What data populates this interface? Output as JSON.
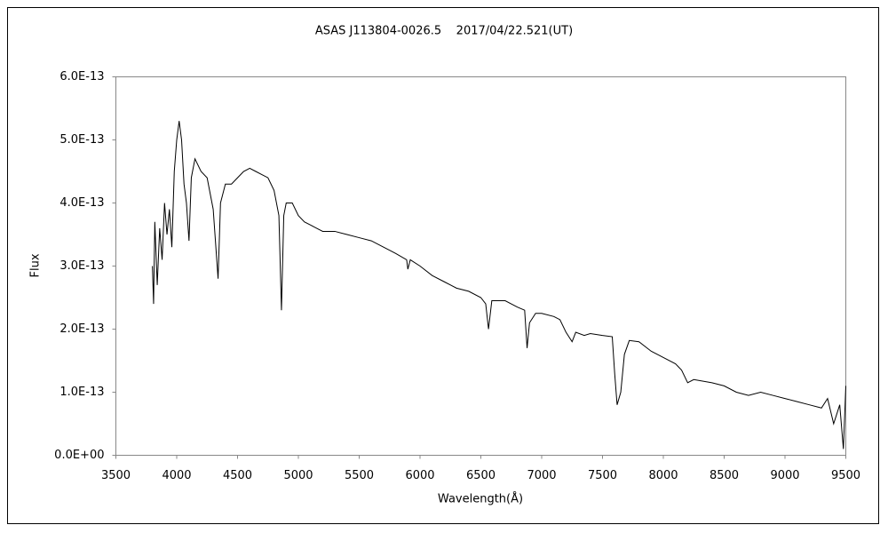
{
  "chart_data": {
    "type": "line",
    "title": "ASAS J113804-0026.5    2017/04/22.521(UT)",
    "xlabel": "Wavelength(Å)",
    "ylabel": "Flux",
    "xlim": [
      3500,
      9500
    ],
    "xticks": [
      3500,
      4000,
      4500,
      5000,
      5500,
      6000,
      6500,
      7000,
      7500,
      8000,
      8500,
      9000,
      9500
    ],
    "ylim": [
      0,
      6e-13
    ],
    "yticks": [
      {
        "value": 0,
        "label": "0.0E+00"
      },
      {
        "value": 1e-13,
        "label": "1.0E-13"
      },
      {
        "value": 2e-13,
        "label": "2.0E-13"
      },
      {
        "value": 3e-13,
        "label": "3.0E-13"
      },
      {
        "value": 4e-13,
        "label": "4.0E-13"
      },
      {
        "value": 5e-13,
        "label": "5.0E-13"
      },
      {
        "value": 6e-13,
        "label": "6.0E-13"
      }
    ],
    "grid": false,
    "series": [
      {
        "color": "#000000",
        "x": [
          3800,
          3810,
          3820,
          3840,
          3860,
          3880,
          3900,
          3920,
          3940,
          3960,
          3980,
          4000,
          4020,
          4040,
          4060,
          4080,
          4101,
          4120,
          4150,
          4200,
          4250,
          4300,
          4340,
          4360,
          4400,
          4450,
          4500,
          4550,
          4600,
          4650,
          4700,
          4750,
          4800,
          4840,
          4861,
          4880,
          4900,
          4950,
          5000,
          5050,
          5100,
          5150,
          5200,
          5300,
          5400,
          5500,
          5600,
          5700,
          5800,
          5890,
          5900,
          5920,
          6000,
          6100,
          6200,
          6300,
          6400,
          6500,
          6540,
          6563,
          6590,
          6700,
          6800,
          6860,
          6880,
          6900,
          6950,
          7000,
          7100,
          7150,
          7200,
          7250,
          7280,
          7350,
          7400,
          7500,
          7580,
          7600,
          7620,
          7650,
          7680,
          7720,
          7800,
          7900,
          8000,
          8100,
          8150,
          8200,
          8250,
          8400,
          8500,
          8600,
          8700,
          8800,
          8900,
          9000,
          9100,
          9200,
          9300,
          9350,
          9400,
          9450,
          9480,
          9500
        ],
        "values": [
          3e-13,
          2.4e-13,
          3.7e-13,
          2.7e-13,
          3.6e-13,
          3.1e-13,
          4e-13,
          3.5e-13,
          3.9e-13,
          3.3e-13,
          4.5e-13,
          5e-13,
          5.3e-13,
          5e-13,
          4.3e-13,
          4e-13,
          3.4e-13,
          4.4e-13,
          4.7e-13,
          4.5e-13,
          4.4e-13,
          3.9e-13,
          2.8e-13,
          4e-13,
          4.3e-13,
          4.3e-13,
          4.4e-13,
          4.5e-13,
          4.55e-13,
          4.5e-13,
          4.45e-13,
          4.4e-13,
          4.2e-13,
          3.8e-13,
          2.3e-13,
          3.8e-13,
          4e-13,
          4e-13,
          3.8e-13,
          3.7e-13,
          3.65e-13,
          3.6e-13,
          3.55e-13,
          3.55e-13,
          3.5e-13,
          3.45e-13,
          3.4e-13,
          3.3e-13,
          3.2e-13,
          3.1e-13,
          2.95e-13,
          3.1e-13,
          3e-13,
          2.85e-13,
          2.75e-13,
          2.65e-13,
          2.6e-13,
          2.5e-13,
          2.4e-13,
          2e-13,
          2.45e-13,
          2.45e-13,
          2.35e-13,
          2.3e-13,
          1.7e-13,
          2.1e-13,
          2.25e-13,
          2.25e-13,
          2.2e-13,
          2.15e-13,
          1.95e-13,
          1.8e-13,
          1.95e-13,
          1.9e-13,
          1.93e-13,
          1.9e-13,
          1.88e-13,
          1.3e-13,
          8e-14,
          1e-13,
          1.6e-13,
          1.82e-13,
          1.8e-13,
          1.65e-13,
          1.55e-13,
          1.45e-13,
          1.35e-13,
          1.15e-13,
          1.2e-13,
          1.15e-13,
          1.1e-13,
          1e-13,
          9.5e-14,
          1e-13,
          9.5e-14,
          9e-14,
          8.5e-14,
          8e-14,
          7.5e-14,
          9e-14,
          5e-14,
          8e-14,
          1e-14,
          1.1e-13
        ]
      }
    ]
  }
}
